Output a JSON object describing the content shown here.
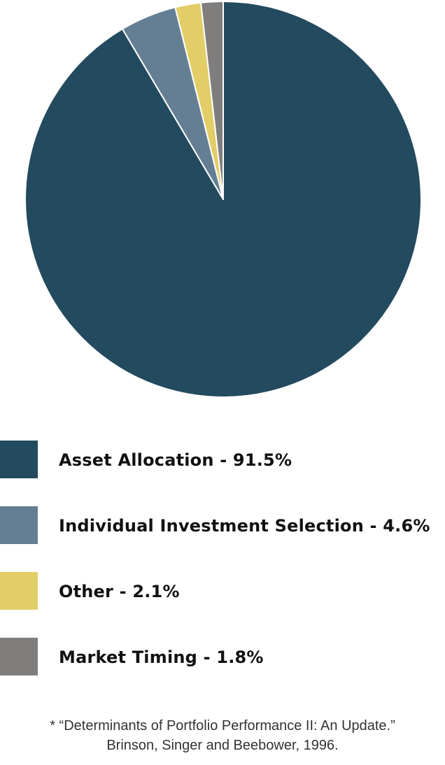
{
  "chart_data": {
    "type": "pie",
    "start": "12 o'clock, clockwise",
    "slices": [
      {
        "label": "Asset Allocation",
        "value": 91.5,
        "color": "#234a5f"
      },
      {
        "label": "Individual Investment Selection",
        "value": 4.6,
        "color": "#647f93"
      },
      {
        "label": "Other",
        "value": 2.1,
        "color": "#e3cd67"
      },
      {
        "label": "Market Timing",
        "value": 1.8,
        "color": "#807d7d"
      }
    ],
    "slice_border_color": "#ffffff"
  },
  "legend": {
    "items": [
      {
        "label": "Asset Allocation - 91.5%",
        "color": "#234a5f"
      },
      {
        "label": "Individual Investment Selection - 4.6%",
        "color": "#647f93"
      },
      {
        "label": "Other - 2.1%",
        "color": "#e3cd67"
      },
      {
        "label": "Market Timing - 1.8%",
        "color": "#807d7d"
      }
    ]
  },
  "footnote": {
    "line1": "* “Determinants of Portfolio Performance II: An Update.”",
    "line2": "Brinson, Singer and Beebower, 1996."
  }
}
